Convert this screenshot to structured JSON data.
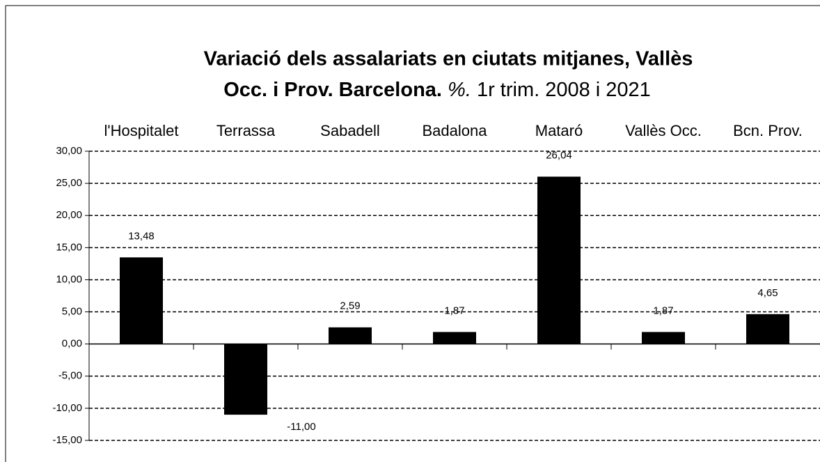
{
  "chart_data": {
    "type": "bar",
    "title": [
      "Variació dels assalariats en ciutats mitjanes, Vallès",
      "Occ. i Prov. Barcelona.",
      "%.",
      "1r trim. 2008 i 2021"
    ],
    "categories": [
      "l'Hospitalet",
      "Terrassa",
      "Sabadell",
      "Badalona",
      "Mataró",
      "Vallès Occ.",
      "Bcn. Prov."
    ],
    "values": [
      13.48,
      -11.0,
      2.59,
      1.87,
      26.04,
      1.87,
      4.65
    ],
    "value_labels": [
      "13,48",
      "-11,00",
      "2,59",
      "1,87",
      "26,04",
      "1,87",
      "4,65"
    ],
    "color": "#000000",
    "ylim": [
      -15,
      30
    ],
    "yticks": [
      {
        "value": -15,
        "label": "-15,00"
      },
      {
        "value": -10,
        "label": "-10,00"
      },
      {
        "value": -5,
        "label": "-5,00"
      },
      {
        "value": 0,
        "label": "0,00"
      },
      {
        "value": 5,
        "label": "5,00"
      },
      {
        "value": 10,
        "label": "10,00"
      },
      {
        "value": 15,
        "label": "15,00"
      },
      {
        "value": 20,
        "label": "20,00"
      },
      {
        "value": 25,
        "label": "25,00"
      },
      {
        "value": 30,
        "label": "30,00"
      }
    ],
    "grid": true
  }
}
